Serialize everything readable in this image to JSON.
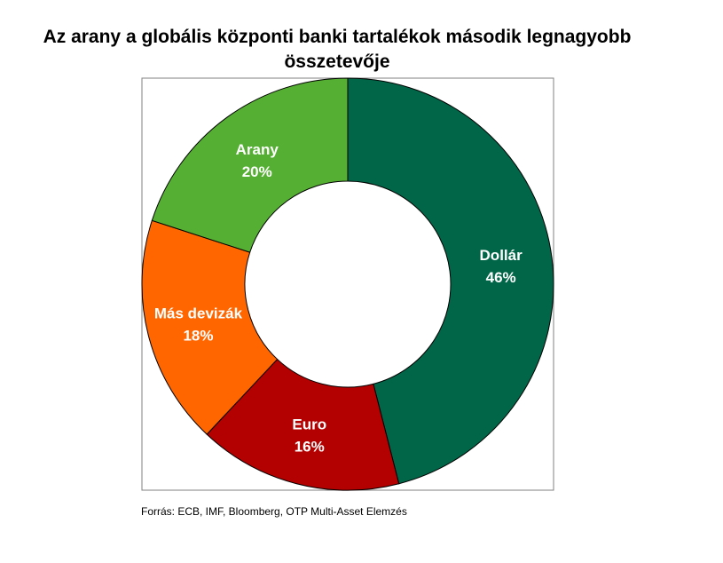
{
  "chart_data": {
    "type": "pie",
    "variant": "donut",
    "title": "Az arany a globális központi banki tartalékok második legnagyobb\nösszetevője",
    "slices": [
      {
        "label": "Dollár",
        "value": 46,
        "value_label": "46%",
        "color": "#006647"
      },
      {
        "label": "Euro",
        "value": 16,
        "value_label": "16%",
        "color": "#B30000"
      },
      {
        "label": "Más devizák",
        "value": 18,
        "value_label": "18%",
        "color": "#FF6600"
      },
      {
        "label": "Arany",
        "value": 20,
        "value_label": "20%",
        "color": "#55AF32"
      }
    ],
    "legend": "none"
  },
  "source": "Forrás: ECB, IMF, Bloomberg, OTP Multi-Asset Elemzés"
}
